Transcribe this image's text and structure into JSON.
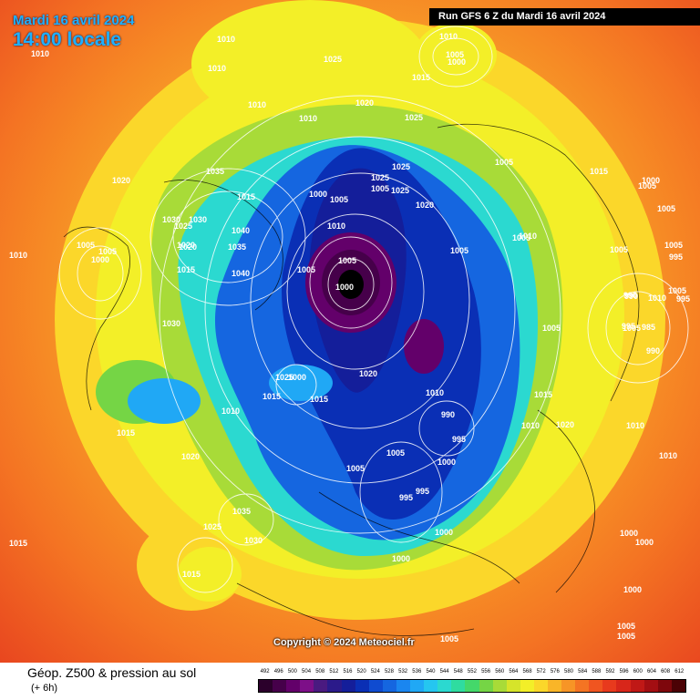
{
  "header": {
    "date": "Mardi 16 avril 2024",
    "local_time": "14:00 locale",
    "run_info": "Run GFS 6 Z du Mardi 16 avril 2024"
  },
  "copyright": "Copyright © 2024 Meteociel.fr",
  "legend": {
    "title": "Géop. Z500 & pression au sol",
    "subtitle": "(+ 6h)",
    "scale_values": [
      "492",
      "496",
      "500",
      "504",
      "508",
      "512",
      "516",
      "520",
      "524",
      "528",
      "532",
      "536",
      "540",
      "544",
      "548",
      "552",
      "556",
      "560",
      "564",
      "568",
      "572",
      "576",
      "580",
      "584",
      "588",
      "592",
      "596",
      "600",
      "604",
      "608",
      "612"
    ],
    "scale_colors": [
      "#2b002b",
      "#46004a",
      "#63006a",
      "#7d0f88",
      "#4a1a80",
      "#2b1a8a",
      "#141e9a",
      "#0a2fb5",
      "#0f4bd0",
      "#1566e0",
      "#1a86f0",
      "#20a8f5",
      "#25c6f0",
      "#2bd9d0",
      "#2fdca0",
      "#44d86a",
      "#75d545",
      "#a8db38",
      "#d6e42a",
      "#f3ef28",
      "#fbd72a",
      "#f9b528",
      "#f79526",
      "#f47423",
      "#f05520",
      "#e83a1d",
      "#d8261a",
      "#c01816",
      "#a30e12",
      "#7e070c",
      "#4b0205"
    ]
  },
  "map": {
    "pressure_labels": [
      {
        "text": "1010"
      },
      {
        "text": "1010"
      },
      {
        "text": "1010"
      },
      {
        "text": "1025"
      },
      {
        "text": "1010"
      },
      {
        "text": "1005"
      },
      {
        "text": "1000"
      },
      {
        "text": "1015"
      },
      {
        "text": "1010"
      },
      {
        "text": "1020"
      },
      {
        "text": "1025"
      },
      {
        "text": "1010"
      },
      {
        "text": "1035"
      },
      {
        "text": "1020"
      },
      {
        "text": "1025"
      },
      {
        "text": "1005"
      },
      {
        "text": "1000"
      },
      {
        "text": "1005"
      },
      {
        "text": "1025"
      },
      {
        "text": "1025"
      },
      {
        "text": "1020"
      },
      {
        "text": "1010"
      },
      {
        "text": "1015"
      },
      {
        "text": "1030"
      },
      {
        "text": "1040"
      },
      {
        "text": "1035"
      },
      {
        "text": "1040"
      },
      {
        "text": "1020"
      },
      {
        "text": "1015"
      },
      {
        "text": "1005"
      },
      {
        "text": "1000"
      },
      {
        "text": "1005"
      },
      {
        "text": "1010"
      },
      {
        "text": "1005"
      },
      {
        "text": "1005"
      },
      {
        "text": "1000"
      },
      {
        "text": "1005"
      },
      {
        "text": "1005"
      },
      {
        "text": "1005"
      },
      {
        "text": "995"
      },
      {
        "text": "1005"
      },
      {
        "text": "990"
      },
      {
        "text": "1010"
      },
      {
        "text": "1005"
      },
      {
        "text": "995"
      },
      {
        "text": "985"
      },
      {
        "text": "1005"
      },
      {
        "text": "990"
      },
      {
        "text": "1010"
      },
      {
        "text": "1005"
      },
      {
        "text": "1005"
      },
      {
        "text": "1000"
      },
      {
        "text": "990"
      },
      {
        "text": "995"
      },
      {
        "text": "1030"
      },
      {
        "text": "1020"
      },
      {
        "text": "1025"
      },
      {
        "text": "1030"
      },
      {
        "text": "1005"
      },
      {
        "text": "1010"
      },
      {
        "text": "1015"
      },
      {
        "text": "1005"
      },
      {
        "text": "1010"
      },
      {
        "text": "1015"
      },
      {
        "text": "1015"
      },
      {
        "text": "1015"
      },
      {
        "text": "1020"
      },
      {
        "text": "1010"
      },
      {
        "text": "990"
      },
      {
        "text": "995"
      },
      {
        "text": "1015"
      },
      {
        "text": "1010"
      },
      {
        "text": "1020"
      },
      {
        "text": "1005"
      },
      {
        "text": "1005"
      },
      {
        "text": "1000"
      },
      {
        "text": "995"
      },
      {
        "text": "995"
      },
      {
        "text": "1000"
      },
      {
        "text": "1000"
      },
      {
        "text": "1035"
      },
      {
        "text": "1025"
      },
      {
        "text": "1030"
      },
      {
        "text": "1015"
      },
      {
        "text": "1015"
      },
      {
        "text": "1000"
      },
      {
        "text": "1000"
      },
      {
        "text": "1000"
      },
      {
        "text": "1005"
      },
      {
        "text": "1005"
      },
      {
        "text": "1005"
      },
      {
        "text": "1010"
      },
      {
        "text": "1020"
      },
      {
        "text": "1025"
      },
      {
        "text": "1000"
      }
    ]
  }
}
